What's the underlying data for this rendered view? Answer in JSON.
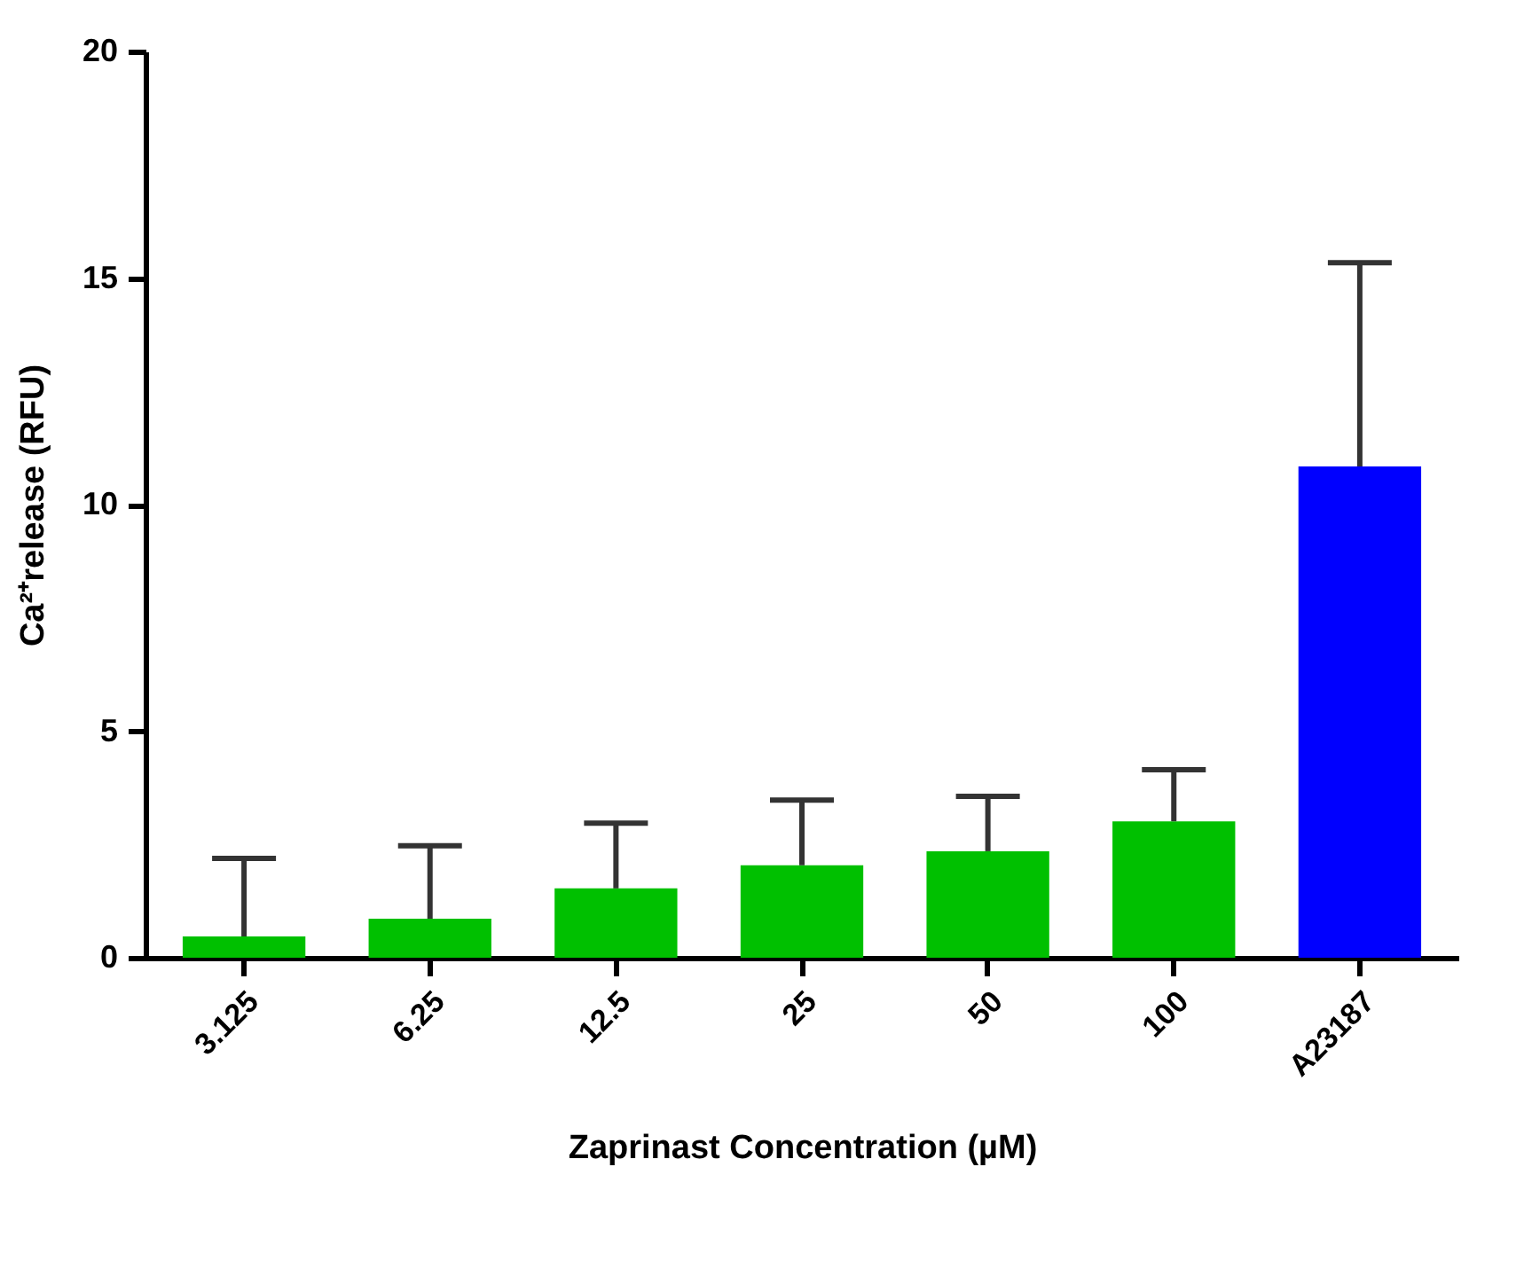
{
  "chart_data": {
    "type": "bar",
    "xlabel": "Zaprinast Concentration (µM)",
    "ylabel": "Ca²⁺release (RFU)",
    "categories": [
      "3.125",
      "6.25",
      "12.5",
      "25",
      "50",
      "100",
      "A23187"
    ],
    "values": [
      0.47,
      0.86,
      1.53,
      2.04,
      2.35,
      3.01,
      10.84
    ],
    "colors": [
      "#00c000",
      "#00c000",
      "#00c000",
      "#00c000",
      "#00c000",
      "#00c000",
      "#0000ff"
    ],
    "errors": [
      [
        0.47,
        2.19
      ],
      [
        0.86,
        2.47
      ],
      [
        1.53,
        2.97
      ],
      [
        2.04,
        3.48
      ],
      [
        2.35,
        3.56
      ],
      [
        3.01,
        4.15
      ],
      [
        10.84,
        15.34
      ]
    ],
    "ylim": [
      0,
      20
    ],
    "yticks": [
      0,
      5,
      10,
      15,
      20
    ],
    "grid": false
  }
}
